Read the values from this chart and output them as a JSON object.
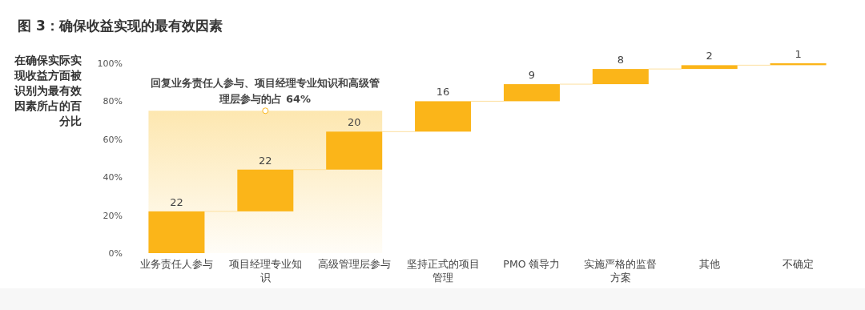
{
  "chart_data": {
    "type": "bar",
    "title": "图 3：确保收益实现的最有效因素",
    "ylabel": "在确保实际实现收益方面被识别为最有效因素所占的百分比",
    "categories": [
      "业务责任人参与",
      "项目经理专业知识",
      "高级管理层参与",
      "坚持正式的项目管理",
      "PMO 领导力",
      "实施严格的监督方案",
      "其他",
      "不确定"
    ],
    "values": [
      22,
      22,
      20,
      16,
      9,
      8,
      2,
      1
    ],
    "base": [
      0,
      22,
      44,
      64,
      80,
      89,
      97,
      99
    ],
    "color": "#fbb519",
    "data_labels": true,
    "ylim": [
      0,
      100
    ],
    "yticks": [
      {
        "value": 0,
        "label": "0%"
      },
      {
        "value": 20,
        "label": "20%"
      },
      {
        "value": 40,
        "label": "40%"
      },
      {
        "value": 60,
        "label": "60%"
      },
      {
        "value": 80,
        "label": "80%"
      },
      {
        "value": 100,
        "label": "100%"
      }
    ],
    "bands": [
      {
        "axis": "x",
        "from": "业务责任人参与",
        "to": "高级管理层参与",
        "label": "回复业务责任人参与、项目经理专业知识和高级管理层参与的占 64%",
        "color": "#fde7b0"
      }
    ]
  }
}
